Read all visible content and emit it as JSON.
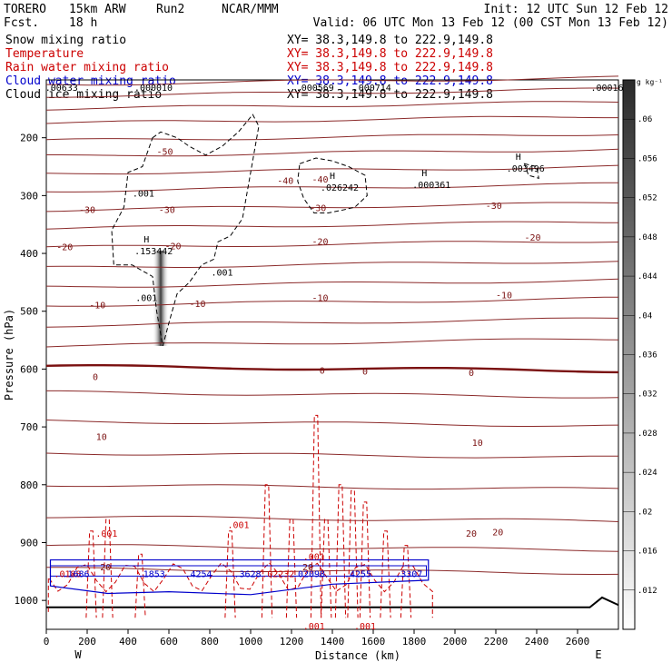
{
  "header": {
    "model": "TORERO",
    "resolution": "15km ARW",
    "run": "Run2",
    "org": "NCAR/MMM",
    "init": "Init: 12 UTC Sun 12 Feb 12",
    "fcst_label": "Fcst.",
    "fcst_value": "18 h",
    "valid": "Valid: 06 UTC Mon 13 Feb 12 (00 CST Mon 13 Feb 12)"
  },
  "fields": [
    {
      "name": "Snow mixing ratio",
      "xy": "XY=  38.3,149.8 to 222.9,149.8",
      "color": "#000000",
      "xy_color": "#000000"
    },
    {
      "name": "Temperature",
      "xy": "XY=  38.3,149.8 to 222.9,149.8",
      "color": "#cc0000",
      "xy_color": "#cc0000"
    },
    {
      "name": "Rain water mixing ratio",
      "xy": "XY=  38.3,149.8 to 222.9,149.8",
      "color": "#cc0000",
      "xy_color": "#cc0000"
    },
    {
      "name": "Cloud water mixing ratio",
      "xy": "XY=  38.3,149.8 to 222.9,149.8",
      "color": "#0000cc",
      "xy_color": "#0000cc"
    },
    {
      "name": "Cloud ice mixing ratio",
      "xy": "XY=  38.3,149.8 to 222.9,149.8",
      "color": "#000000",
      "xy_color": "#000000"
    }
  ],
  "chart_data": {
    "type": "cross-section contour",
    "xlabel": "Distance (km)",
    "ylabel": "Pressure (hPa)",
    "x_ticks": [
      0,
      200,
      400,
      600,
      800,
      1000,
      1200,
      1400,
      1600,
      1800,
      2000,
      2200,
      2400,
      2600
    ],
    "y_ticks": [
      200,
      300,
      400,
      500,
      600,
      700,
      800,
      900,
      1000
    ],
    "xlim": [
      0,
      2800
    ],
    "ylim": [
      1050,
      100
    ],
    "x_end_labels": {
      "left": "W",
      "right": "E"
    },
    "colorbar": {
      "unit": "g kg⁻¹",
      "ticks": [
        ".06",
        ".056",
        ".052",
        ".048",
        ".044",
        ".04",
        ".036",
        ".032",
        ".028",
        ".024",
        ".02",
        ".016",
        ".012"
      ],
      "values": [
        0.06,
        0.056,
        0.052,
        0.048,
        0.044,
        0.04,
        0.036,
        0.032,
        0.028,
        0.024,
        0.02,
        0.016,
        0.012
      ],
      "range": [
        0.008,
        0.064
      ]
    },
    "temperature_isotherms": [
      {
        "label": "-50",
        "x": 580,
        "p": 225
      },
      {
        "label": "-40",
        "x": 1170,
        "p": 275
      },
      {
        "label": "-40",
        "x": 1340,
        "p": 273
      },
      {
        "label": "-30",
        "x": 200,
        "p": 325
      },
      {
        "label": "-30",
        "x": 590,
        "p": 325
      },
      {
        "label": "-30",
        "x": 1330,
        "p": 322
      },
      {
        "label": "-30",
        "x": 2190,
        "p": 318
      },
      {
        "label": "-20",
        "x": 90,
        "p": 390
      },
      {
        "label": "-20",
        "x": 620,
        "p": 388
      },
      {
        "label": "-20",
        "x": 1340,
        "p": 380
      },
      {
        "label": "-20",
        "x": 2380,
        "p": 373
      },
      {
        "label": "-10",
        "x": 250,
        "p": 490
      },
      {
        "label": "-10",
        "x": 740,
        "p": 488
      },
      {
        "label": "-10",
        "x": 1340,
        "p": 478
      },
      {
        "label": "-10",
        "x": 2240,
        "p": 473
      },
      {
        "label": "0",
        "x": 240,
        "p": 614
      },
      {
        "label": "0",
        "x": 1350,
        "p": 603
      },
      {
        "label": "0",
        "x": 1560,
        "p": 605
      },
      {
        "label": "0",
        "x": 2080,
        "p": 607
      },
      {
        "label": "10",
        "x": 270,
        "p": 718
      },
      {
        "label": "10",
        "x": 2110,
        "p": 728
      },
      {
        "label": "20",
        "x": 290,
        "p": 943
      },
      {
        "label": "20",
        "x": 1280,
        "p": 943
      },
      {
        "label": "20",
        "x": 2080,
        "p": 885
      },
      {
        "label": "20",
        "x": 2210,
        "p": 883
      }
    ],
    "maxima_labels": [
      {
        "label": "H",
        "value": ".153442",
        "x": 490,
        "p": 400
      },
      {
        "label": "H",
        "value": ".026242",
        "x": 1400,
        "p": 290
      },
      {
        "label": "H",
        "value": ".000361",
        "x": 1850,
        "p": 285
      },
      {
        "label": "H",
        "value": ".003496",
        "x": 2310,
        "p": 257
      }
    ],
    "contour_labels": [
      {
        "label": ".001",
        "x": 475,
        "p": 302
      },
      {
        "label": ".001",
        "x": 860,
        "p": 438
      },
      {
        "label": ".001",
        "x": 490,
        "p": 482
      },
      {
        "label": ".001",
        "x": 295,
        "p": 890
      },
      {
        "label": ".001",
        "x": 940,
        "p": 875
      },
      {
        "label": ".001",
        "x": 1310,
        "p": 930
      },
      {
        "label": ".001",
        "x": 1310,
        "p": 1050
      },
      {
        "label": ".001",
        "x": 1560,
        "p": 1050
      }
    ],
    "top_strip_labels": [
      {
        "value": ".000010",
        "x": 480
      },
      {
        "value": ".000569",
        "x": 1270
      },
      {
        "value": ".000714",
        "x": 1550
      },
      {
        "value": ".00016",
        "x": 2700
      },
      {
        "value": ".00633",
        "x": 30
      }
    ],
    "low_level_values": [
      {
        "value": ".0188",
        "x": 60,
        "color": "#cc0000"
      },
      {
        "value": ".1686",
        "x": 100,
        "color": "#0000cc"
      },
      {
        "value": ".1853",
        "x": 470,
        "color": "#0000cc"
      },
      {
        "value": ".4254",
        "x": 700,
        "color": "#0000cc"
      },
      {
        "value": ".3628",
        "x": 940,
        "color": "#0000cc"
      },
      {
        "value": ".02232",
        "x": 1090,
        "color": "#cc0000"
      },
      {
        "value": ".02098",
        "x": 1240,
        "color": "#0000cc"
      },
      {
        "value": ".4255",
        "x": 1480,
        "color": "#0000cc"
      },
      {
        "value": ".3307",
        "x": 1730,
        "color": "#0000cc"
      }
    ]
  }
}
